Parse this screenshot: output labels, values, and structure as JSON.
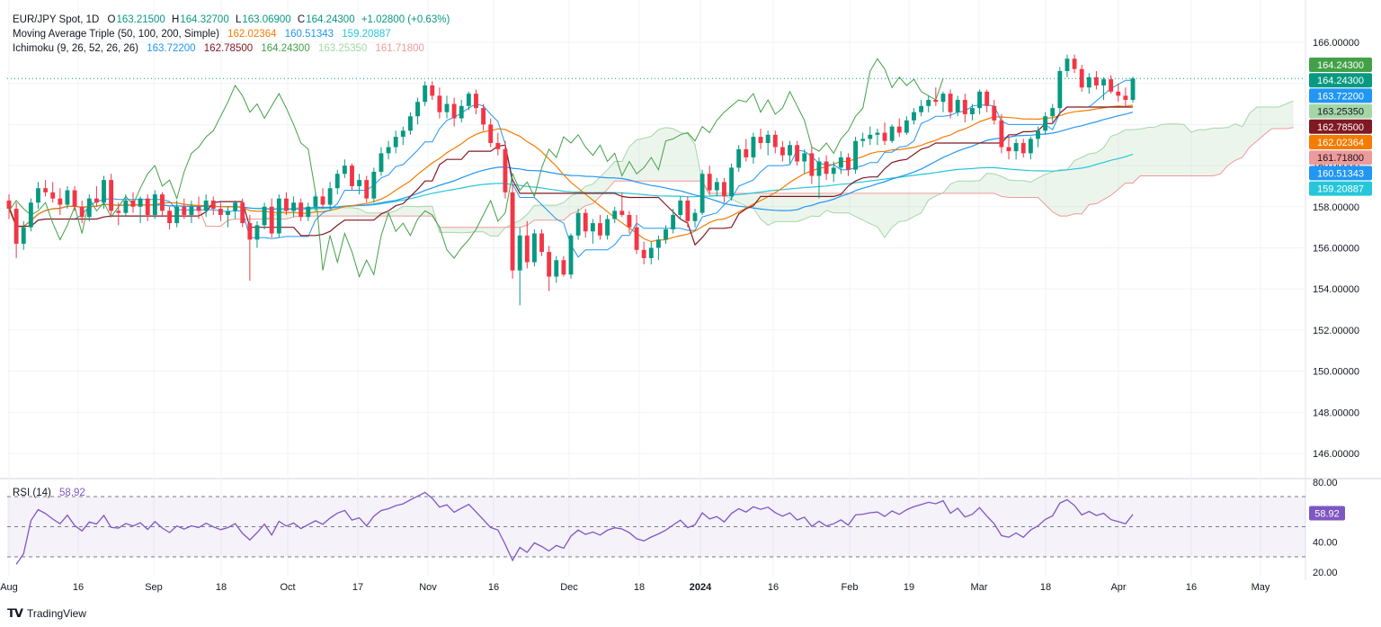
{
  "header": {
    "symbol": "EUR/JPY Spot, 1D",
    "ohlc": {
      "o_label": "O",
      "o": "163.21500",
      "h_label": "H",
      "h": "164.32700",
      "l_label": "L",
      "l": "163.06900",
      "c_label": "C",
      "c": "164.24300",
      "chg": "+1.02800 (+0.63%)"
    },
    "ma_title": "Moving Average Triple (50, 100, 200, Simple)",
    "ma_values": [
      "162.02364",
      "160.51343",
      "159.20887"
    ],
    "ichi_title": "Ichimoku (9, 26, 52, 26, 26)",
    "ichi_values": [
      "163.72200",
      "162.78500",
      "164.24300",
      "163.25350",
      "161.71800"
    ],
    "rsi_title": "RSI (14)",
    "rsi_value": "58.92"
  },
  "colors": {
    "up": "#089981",
    "down": "#f23645",
    "ma50": "#f57c00",
    "ma100": "#2196f3",
    "ma200": "#26c6da",
    "tenkan": "#2196f3",
    "kijun": "#801922",
    "chikou": "#43a047",
    "spanA": "#a5d6a7",
    "spanB": "#ef9a9a",
    "rsi": "#7e57c2",
    "price_line": "#089981"
  },
  "watermark": "TradingView",
  "chart_data": {
    "type": "candlestick",
    "title": "EUR/JPY Spot, 1D",
    "ylim": [
      145.0,
      167.0
    ],
    "y_ticks": [
      "166.00000",
      "164.00000",
      "162.00000",
      "160.00000",
      "158.00000",
      "156.00000",
      "154.00000",
      "152.00000",
      "150.00000",
      "148.00000",
      "146.00000"
    ],
    "x_ticks": [
      "Aug",
      "16",
      "Sep",
      "18",
      "Oct",
      "17",
      "Nov",
      "16",
      "Dec",
      "18",
      "2024",
      "16",
      "Feb",
      "19",
      "Mar",
      "18",
      "Apr",
      "16",
      "May"
    ],
    "candles": [
      {
        "o": 158.3,
        "h": 158.6,
        "l": 157.4,
        "c": 157.9
      },
      {
        "o": 157.9,
        "h": 158.2,
        "l": 155.5,
        "c": 156.2
      },
      {
        "o": 156.2,
        "h": 157.3,
        "l": 155.9,
        "c": 157.0
      },
      {
        "o": 157.0,
        "h": 158.4,
        "l": 156.8,
        "c": 158.2
      },
      {
        "o": 158.2,
        "h": 159.2,
        "l": 157.9,
        "c": 158.9
      },
      {
        "o": 158.9,
        "h": 159.3,
        "l": 158.5,
        "c": 158.7
      },
      {
        "o": 158.7,
        "h": 159.2,
        "l": 158.2,
        "c": 158.4
      },
      {
        "o": 158.4,
        "h": 158.9,
        "l": 157.6,
        "c": 158.1
      },
      {
        "o": 158.1,
        "h": 159.0,
        "l": 157.9,
        "c": 158.8
      },
      {
        "o": 158.8,
        "h": 159.0,
        "l": 157.8,
        "c": 158.0
      },
      {
        "o": 158.0,
        "h": 158.3,
        "l": 157.2,
        "c": 157.5
      },
      {
        "o": 157.5,
        "h": 158.6,
        "l": 157.3,
        "c": 158.4
      },
      {
        "o": 158.4,
        "h": 159.0,
        "l": 158.0,
        "c": 158.2
      },
      {
        "o": 158.2,
        "h": 159.5,
        "l": 157.9,
        "c": 159.3
      },
      {
        "o": 159.3,
        "h": 159.6,
        "l": 157.5,
        "c": 157.8
      },
      {
        "o": 157.8,
        "h": 158.2,
        "l": 157.1,
        "c": 157.7
      },
      {
        "o": 157.7,
        "h": 158.6,
        "l": 157.5,
        "c": 158.3
      },
      {
        "o": 158.3,
        "h": 158.7,
        "l": 157.7,
        "c": 158.0
      },
      {
        "o": 158.0,
        "h": 158.5,
        "l": 157.2,
        "c": 158.4
      },
      {
        "o": 158.4,
        "h": 158.6,
        "l": 157.3,
        "c": 157.6
      },
      {
        "o": 157.6,
        "h": 158.8,
        "l": 157.4,
        "c": 158.6
      },
      {
        "o": 158.6,
        "h": 158.7,
        "l": 157.5,
        "c": 157.8
      },
      {
        "o": 157.8,
        "h": 158.0,
        "l": 156.9,
        "c": 157.2
      },
      {
        "o": 157.2,
        "h": 158.3,
        "l": 157.0,
        "c": 158.0
      },
      {
        "o": 158.0,
        "h": 158.4,
        "l": 157.4,
        "c": 157.6
      },
      {
        "o": 157.6,
        "h": 158.3,
        "l": 157.2,
        "c": 158.0
      },
      {
        "o": 158.0,
        "h": 158.5,
        "l": 157.4,
        "c": 157.8
      },
      {
        "o": 157.8,
        "h": 158.6,
        "l": 157.5,
        "c": 158.3
      },
      {
        "o": 158.3,
        "h": 158.5,
        "l": 157.6,
        "c": 157.9
      },
      {
        "o": 157.9,
        "h": 158.2,
        "l": 157.3,
        "c": 157.6
      },
      {
        "o": 157.6,
        "h": 158.0,
        "l": 157.0,
        "c": 157.8
      },
      {
        "o": 157.8,
        "h": 158.3,
        "l": 157.4,
        "c": 158.2
      },
      {
        "o": 158.2,
        "h": 158.4,
        "l": 157.0,
        "c": 157.2
      },
      {
        "o": 157.2,
        "h": 157.6,
        "l": 154.4,
        "c": 156.4
      },
      {
        "o": 156.4,
        "h": 157.3,
        "l": 156.0,
        "c": 157.1
      },
      {
        "o": 157.1,
        "h": 158.2,
        "l": 156.9,
        "c": 158.0
      },
      {
        "o": 158.0,
        "h": 158.4,
        "l": 156.5,
        "c": 156.7
      },
      {
        "o": 156.7,
        "h": 158.6,
        "l": 156.5,
        "c": 158.4
      },
      {
        "o": 158.4,
        "h": 158.7,
        "l": 157.6,
        "c": 157.8
      },
      {
        "o": 157.8,
        "h": 158.5,
        "l": 157.5,
        "c": 158.2
      },
      {
        "o": 158.2,
        "h": 158.4,
        "l": 157.3,
        "c": 157.5
      },
      {
        "o": 157.5,
        "h": 158.2,
        "l": 157.3,
        "c": 158.0
      },
      {
        "o": 158.0,
        "h": 158.7,
        "l": 157.8,
        "c": 158.5
      },
      {
        "o": 158.5,
        "h": 158.9,
        "l": 157.9,
        "c": 158.1
      },
      {
        "o": 158.1,
        "h": 159.2,
        "l": 157.9,
        "c": 158.9
      },
      {
        "o": 158.9,
        "h": 159.8,
        "l": 158.6,
        "c": 159.6
      },
      {
        "o": 159.6,
        "h": 160.3,
        "l": 159.4,
        "c": 160.0
      },
      {
        "o": 160.0,
        "h": 160.1,
        "l": 158.8,
        "c": 159.0
      },
      {
        "o": 159.0,
        "h": 159.6,
        "l": 158.6,
        "c": 159.3
      },
      {
        "o": 159.3,
        "h": 159.5,
        "l": 158.2,
        "c": 158.4
      },
      {
        "o": 158.4,
        "h": 159.9,
        "l": 158.2,
        "c": 159.7
      },
      {
        "o": 159.7,
        "h": 160.9,
        "l": 159.5,
        "c": 160.6
      },
      {
        "o": 160.6,
        "h": 161.2,
        "l": 160.3,
        "c": 160.9
      },
      {
        "o": 160.9,
        "h": 161.7,
        "l": 160.6,
        "c": 161.4
      },
      {
        "o": 161.4,
        "h": 161.9,
        "l": 161.0,
        "c": 161.7
      },
      {
        "o": 161.7,
        "h": 162.6,
        "l": 161.5,
        "c": 162.4
      },
      {
        "o": 162.4,
        "h": 163.3,
        "l": 162.0,
        "c": 163.1
      },
      {
        "o": 163.1,
        "h": 164.1,
        "l": 162.9,
        "c": 163.9
      },
      {
        "o": 163.9,
        "h": 164.1,
        "l": 163.2,
        "c": 163.4
      },
      {
        "o": 163.4,
        "h": 163.8,
        "l": 162.3,
        "c": 162.6
      },
      {
        "o": 162.6,
        "h": 163.4,
        "l": 162.3,
        "c": 163.0
      },
      {
        "o": 163.0,
        "h": 163.3,
        "l": 161.9,
        "c": 162.3
      },
      {
        "o": 162.3,
        "h": 163.2,
        "l": 162.1,
        "c": 162.9
      },
      {
        "o": 162.9,
        "h": 163.6,
        "l": 162.7,
        "c": 163.5
      },
      {
        "o": 163.5,
        "h": 163.7,
        "l": 162.5,
        "c": 162.8
      },
      {
        "o": 162.8,
        "h": 163.0,
        "l": 161.7,
        "c": 162.0
      },
      {
        "o": 162.0,
        "h": 162.3,
        "l": 160.9,
        "c": 161.1
      },
      {
        "o": 161.1,
        "h": 161.6,
        "l": 160.5,
        "c": 160.8
      },
      {
        "o": 160.8,
        "h": 161.2,
        "l": 158.4,
        "c": 158.7
      },
      {
        "o": 158.7,
        "h": 159.1,
        "l": 154.5,
        "c": 154.9
      },
      {
        "o": 154.9,
        "h": 157.0,
        "l": 153.2,
        "c": 156.6
      },
      {
        "o": 156.6,
        "h": 157.3,
        "l": 155.0,
        "c": 155.3
      },
      {
        "o": 155.3,
        "h": 156.9,
        "l": 155.1,
        "c": 156.7
      },
      {
        "o": 156.7,
        "h": 156.9,
        "l": 155.6,
        "c": 155.8
      },
      {
        "o": 155.8,
        "h": 156.1,
        "l": 153.9,
        "c": 154.6
      },
      {
        "o": 154.6,
        "h": 155.6,
        "l": 154.3,
        "c": 155.4
      },
      {
        "o": 155.4,
        "h": 155.6,
        "l": 154.6,
        "c": 154.7
      },
      {
        "o": 154.7,
        "h": 156.7,
        "l": 154.5,
        "c": 156.6
      },
      {
        "o": 156.6,
        "h": 157.9,
        "l": 156.4,
        "c": 157.7
      },
      {
        "o": 157.7,
        "h": 157.9,
        "l": 156.5,
        "c": 156.8
      },
      {
        "o": 156.8,
        "h": 157.4,
        "l": 156.2,
        "c": 157.2
      },
      {
        "o": 157.2,
        "h": 157.6,
        "l": 156.4,
        "c": 156.6
      },
      {
        "o": 156.6,
        "h": 157.6,
        "l": 156.4,
        "c": 157.4
      },
      {
        "o": 157.4,
        "h": 158.0,
        "l": 157.2,
        "c": 157.8
      },
      {
        "o": 157.8,
        "h": 158.7,
        "l": 157.5,
        "c": 157.6
      },
      {
        "o": 157.6,
        "h": 157.8,
        "l": 156.7,
        "c": 157.0
      },
      {
        "o": 157.0,
        "h": 157.6,
        "l": 155.7,
        "c": 155.9
      },
      {
        "o": 155.9,
        "h": 156.3,
        "l": 155.2,
        "c": 155.5
      },
      {
        "o": 155.5,
        "h": 156.3,
        "l": 155.2,
        "c": 156.0
      },
      {
        "o": 156.0,
        "h": 156.6,
        "l": 155.4,
        "c": 156.4
      },
      {
        "o": 156.4,
        "h": 157.1,
        "l": 156.2,
        "c": 156.9
      },
      {
        "o": 156.9,
        "h": 157.9,
        "l": 156.7,
        "c": 157.6
      },
      {
        "o": 157.6,
        "h": 158.5,
        "l": 157.4,
        "c": 158.3
      },
      {
        "o": 158.3,
        "h": 158.5,
        "l": 157.0,
        "c": 157.3
      },
      {
        "o": 157.3,
        "h": 157.9,
        "l": 157.0,
        "c": 157.7
      },
      {
        "o": 157.7,
        "h": 159.8,
        "l": 157.6,
        "c": 159.6
      },
      {
        "o": 159.6,
        "h": 160.0,
        "l": 158.6,
        "c": 158.8
      },
      {
        "o": 158.8,
        "h": 159.4,
        "l": 158.5,
        "c": 159.2
      },
      {
        "o": 159.2,
        "h": 159.4,
        "l": 158.2,
        "c": 158.5
      },
      {
        "o": 158.5,
        "h": 160.1,
        "l": 158.3,
        "c": 159.9
      },
      {
        "o": 159.9,
        "h": 161.0,
        "l": 159.7,
        "c": 160.8
      },
      {
        "o": 160.8,
        "h": 161.3,
        "l": 160.2,
        "c": 160.4
      },
      {
        "o": 160.4,
        "h": 161.6,
        "l": 160.1,
        "c": 161.4
      },
      {
        "o": 161.4,
        "h": 161.8,
        "l": 160.8,
        "c": 161.1
      },
      {
        "o": 161.1,
        "h": 161.7,
        "l": 160.5,
        "c": 161.5
      },
      {
        "o": 161.5,
        "h": 161.7,
        "l": 160.6,
        "c": 160.9
      },
      {
        "o": 160.9,
        "h": 161.2,
        "l": 160.2,
        "c": 160.5
      },
      {
        "o": 160.5,
        "h": 161.2,
        "l": 160.1,
        "c": 161.0
      },
      {
        "o": 161.0,
        "h": 161.2,
        "l": 160.0,
        "c": 160.2
      },
      {
        "o": 160.2,
        "h": 160.8,
        "l": 159.6,
        "c": 160.6
      },
      {
        "o": 160.6,
        "h": 160.9,
        "l": 159.1,
        "c": 159.5
      },
      {
        "o": 159.5,
        "h": 160.4,
        "l": 158.4,
        "c": 160.2
      },
      {
        "o": 160.2,
        "h": 160.5,
        "l": 159.3,
        "c": 159.6
      },
      {
        "o": 159.6,
        "h": 160.2,
        "l": 159.2,
        "c": 159.9
      },
      {
        "o": 159.9,
        "h": 160.7,
        "l": 159.6,
        "c": 160.4
      },
      {
        "o": 160.4,
        "h": 160.6,
        "l": 159.5,
        "c": 159.8
      },
      {
        "o": 159.8,
        "h": 161.4,
        "l": 159.6,
        "c": 161.2
      },
      {
        "o": 161.2,
        "h": 161.6,
        "l": 160.9,
        "c": 161.3
      },
      {
        "o": 161.3,
        "h": 161.9,
        "l": 161.0,
        "c": 161.5
      },
      {
        "o": 161.5,
        "h": 161.8,
        "l": 161.0,
        "c": 161.6
      },
      {
        "o": 161.6,
        "h": 162.1,
        "l": 161.0,
        "c": 161.2
      },
      {
        "o": 161.2,
        "h": 162.0,
        "l": 161.1,
        "c": 161.9
      },
      {
        "o": 161.9,
        "h": 162.3,
        "l": 161.4,
        "c": 161.6
      },
      {
        "o": 161.6,
        "h": 162.4,
        "l": 161.5,
        "c": 162.2
      },
      {
        "o": 162.2,
        "h": 162.8,
        "l": 162.0,
        "c": 162.6
      },
      {
        "o": 162.6,
        "h": 163.2,
        "l": 162.4,
        "c": 162.9
      },
      {
        "o": 162.9,
        "h": 163.4,
        "l": 162.6,
        "c": 163.2
      },
      {
        "o": 163.2,
        "h": 163.8,
        "l": 162.9,
        "c": 163.1
      },
      {
        "o": 163.1,
        "h": 163.6,
        "l": 162.6,
        "c": 163.5
      },
      {
        "o": 163.5,
        "h": 163.7,
        "l": 162.3,
        "c": 162.6
      },
      {
        "o": 162.6,
        "h": 163.4,
        "l": 162.4,
        "c": 163.2
      },
      {
        "o": 163.2,
        "h": 163.5,
        "l": 162.1,
        "c": 162.5
      },
      {
        "o": 162.5,
        "h": 163.0,
        "l": 162.2,
        "c": 162.8
      },
      {
        "o": 162.8,
        "h": 163.7,
        "l": 162.5,
        "c": 163.6
      },
      {
        "o": 163.6,
        "h": 163.7,
        "l": 162.6,
        "c": 162.9
      },
      {
        "o": 162.9,
        "h": 163.2,
        "l": 162.0,
        "c": 162.2
      },
      {
        "o": 162.2,
        "h": 162.5,
        "l": 160.6,
        "c": 160.9
      },
      {
        "o": 160.9,
        "h": 161.5,
        "l": 160.3,
        "c": 160.7
      },
      {
        "o": 160.7,
        "h": 161.3,
        "l": 160.3,
        "c": 161.1
      },
      {
        "o": 161.1,
        "h": 161.3,
        "l": 160.4,
        "c": 160.6
      },
      {
        "o": 160.6,
        "h": 161.4,
        "l": 160.3,
        "c": 161.3
      },
      {
        "o": 161.3,
        "h": 161.9,
        "l": 160.9,
        "c": 161.7
      },
      {
        "o": 161.7,
        "h": 162.6,
        "l": 161.5,
        "c": 162.4
      },
      {
        "o": 162.4,
        "h": 163.0,
        "l": 162.1,
        "c": 162.8
      },
      {
        "o": 162.8,
        "h": 164.8,
        "l": 162.5,
        "c": 164.6
      },
      {
        "o": 164.6,
        "h": 165.4,
        "l": 164.3,
        "c": 165.2
      },
      {
        "o": 165.2,
        "h": 165.4,
        "l": 164.5,
        "c": 164.7
      },
      {
        "o": 164.7,
        "h": 164.9,
        "l": 163.6,
        "c": 163.8
      },
      {
        "o": 163.8,
        "h": 164.5,
        "l": 163.5,
        "c": 164.3
      },
      {
        "o": 164.3,
        "h": 164.6,
        "l": 163.7,
        "c": 163.9
      },
      {
        "o": 163.9,
        "h": 164.3,
        "l": 163.2,
        "c": 164.2
      },
      {
        "o": 164.2,
        "h": 164.4,
        "l": 163.5,
        "c": 163.6
      },
      {
        "o": 163.6,
        "h": 164.0,
        "l": 163.1,
        "c": 163.4
      },
      {
        "o": 163.4,
        "h": 163.8,
        "l": 162.9,
        "c": 163.2
      },
      {
        "o": 163.2,
        "h": 164.33,
        "l": 163.07,
        "c": 164.24
      }
    ],
    "rsi": {
      "ylim": [
        20,
        80
      ],
      "ticks": [
        "80.00",
        "60.00",
        "40.00",
        "20.00"
      ],
      "value": 58.92
    }
  }
}
